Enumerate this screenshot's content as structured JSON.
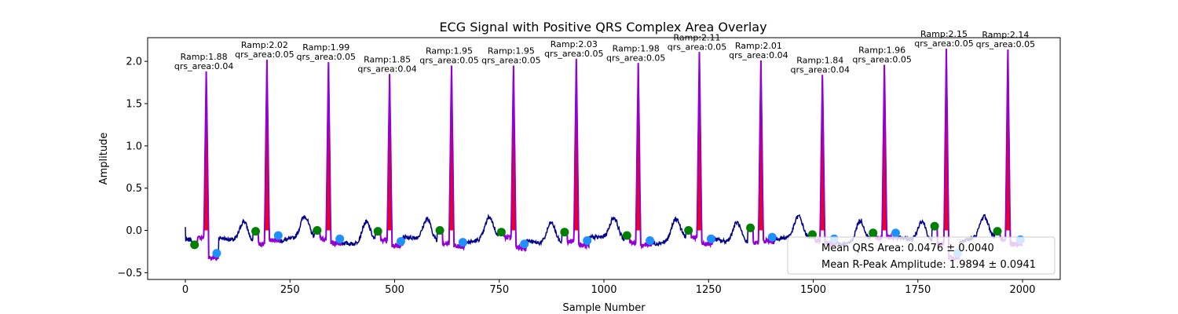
{
  "chart_data": {
    "type": "line",
    "title": "ECG Signal with Positive QRS Complex Area Overlay",
    "xlabel": "Sample Number",
    "ylabel": "Amplitude",
    "xlim": [
      -90,
      2090
    ],
    "ylim": [
      -0.58,
      2.28
    ],
    "xticks": [
      0,
      250,
      500,
      750,
      1000,
      1250,
      1500,
      1750,
      2000
    ],
    "yticks": [
      -0.5,
      0.0,
      0.5,
      1.0,
      1.5,
      2.0
    ],
    "ytick_labels": [
      "−0.5",
      "0.0",
      "0.5",
      "1.0",
      "1.5",
      "2.0"
    ],
    "grid": false,
    "legend_position": "lower-right",
    "colors": {
      "signal": "#00008b",
      "qrs_segment": "#9400d3",
      "qrs_area_fill": "#ff0000",
      "q_point": "#008000",
      "s_point": "#1e90ff"
    },
    "beats": [
      {
        "r_sample": 50,
        "r_amp": 1.88,
        "ramp_label": "Ramp:1.88",
        "qrs_area_label": "qrs_area:0.04",
        "q_sample": 22,
        "q_amp": -0.17,
        "s_sample": 75,
        "s_amp": -0.27
      },
      {
        "r_sample": 195,
        "r_amp": 2.02,
        "ramp_label": "Ramp:2.02",
        "qrs_area_label": "qrs_area:0.05",
        "q_sample": 168,
        "q_amp": -0.01,
        "s_sample": 222,
        "s_amp": -0.06
      },
      {
        "r_sample": 342,
        "r_amp": 1.99,
        "ramp_label": "Ramp:1.99",
        "qrs_area_label": "qrs_area:0.05",
        "q_sample": 315,
        "q_amp": 0.0,
        "s_sample": 369,
        "s_amp": -0.1
      },
      {
        "r_sample": 488,
        "r_amp": 1.85,
        "ramp_label": "Ramp:1.85",
        "qrs_area_label": "qrs_area:0.04",
        "q_sample": 460,
        "q_amp": -0.01,
        "s_sample": 515,
        "s_amp": -0.13
      },
      {
        "r_sample": 636,
        "r_amp": 1.95,
        "ramp_label": "Ramp:1.95",
        "qrs_area_label": "qrs_area:0.05",
        "q_sample": 608,
        "q_amp": 0.0,
        "s_sample": 663,
        "s_amp": -0.14
      },
      {
        "r_sample": 784,
        "r_amp": 1.95,
        "ramp_label": "Ramp:1.95",
        "qrs_area_label": "qrs_area:0.05",
        "q_sample": 755,
        "q_amp": -0.02,
        "s_sample": 810,
        "s_amp": -0.16
      },
      {
        "r_sample": 934,
        "r_amp": 2.03,
        "ramp_label": "Ramp:2.03",
        "qrs_area_label": "qrs_area:0.05",
        "q_sample": 906,
        "q_amp": -0.02,
        "s_sample": 960,
        "s_amp": -0.12
      },
      {
        "r_sample": 1082,
        "r_amp": 1.98,
        "ramp_label": "Ramp:1.98",
        "qrs_area_label": "qrs_area:0.05",
        "q_sample": 1055,
        "q_amp": -0.06,
        "s_sample": 1110,
        "s_amp": -0.12
      },
      {
        "r_sample": 1228,
        "r_amp": 2.11,
        "ramp_label": "Ramp:2.11",
        "qrs_area_label": "qrs_area:0.05",
        "q_sample": 1202,
        "q_amp": 0.0,
        "s_sample": 1256,
        "s_amp": -0.1
      },
      {
        "r_sample": 1375,
        "r_amp": 2.01,
        "ramp_label": "Ramp:2.01",
        "qrs_area_label": "qrs_area:0.04",
        "q_sample": 1350,
        "q_amp": 0.03,
        "s_sample": 1402,
        "s_amp": -0.08
      },
      {
        "r_sample": 1522,
        "r_amp": 1.84,
        "ramp_label": "Ramp:1.84",
        "qrs_area_label": "qrs_area:0.04",
        "q_sample": 1498,
        "q_amp": -0.05,
        "s_sample": 1550,
        "s_amp": -0.1
      },
      {
        "r_sample": 1670,
        "r_amp": 1.96,
        "ramp_label": "Ramp:1.96",
        "qrs_area_label": "qrs_area:0.05",
        "q_sample": 1643,
        "q_amp": -0.03,
        "s_sample": 1697,
        "s_amp": -0.03
      },
      {
        "r_sample": 1818,
        "r_amp": 2.15,
        "ramp_label": "Ramp:2.15",
        "qrs_area_label": "qrs_area:0.05",
        "q_sample": 1790,
        "q_amp": 0.05,
        "s_sample": 1845,
        "s_amp": -0.27
      },
      {
        "r_sample": 1965,
        "r_amp": 2.14,
        "ramp_label": "Ramp:2.14",
        "qrs_area_label": "qrs_area:0.05",
        "q_sample": 1940,
        "q_amp": -0.01,
        "s_sample": 1995,
        "s_amp": -0.11
      }
    ],
    "legend_entries": [
      "Mean QRS Area: 0.0476 ± 0.0040",
      "Mean R-Peak Amplitude: 1.9894 ± 0.0941"
    ]
  }
}
